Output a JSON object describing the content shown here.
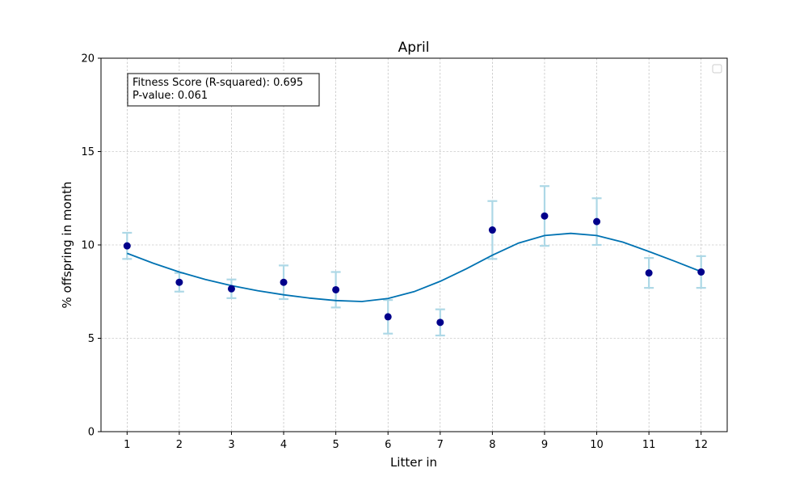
{
  "chart_data": {
    "type": "scatter",
    "title": "April",
    "xlabel": "Litter in",
    "ylabel": "% offspring in month",
    "xlim": [
      0.5,
      12.5
    ],
    "ylim": [
      0,
      20
    ],
    "xticks": [
      1,
      2,
      3,
      4,
      5,
      6,
      7,
      8,
      9,
      10,
      11,
      12
    ],
    "yticks": [
      0,
      5,
      10,
      15,
      20
    ],
    "grid": true,
    "legend": "top-right (empty)",
    "annotation": [
      "Fitness Score (R-squared): 0.695",
      "P-value: 0.061"
    ],
    "points": {
      "x": [
        1,
        2,
        3,
        4,
        5,
        6,
        7,
        8,
        9,
        10,
        11,
        12
      ],
      "y": [
        9.95,
        8.0,
        7.65,
        8.0,
        7.6,
        6.15,
        5.85,
        10.8,
        11.55,
        11.25,
        8.5,
        8.55
      ],
      "err": [
        0.7,
        0.5,
        0.5,
        0.9,
        0.95,
        0.9,
        0.7,
        1.55,
        1.6,
        1.25,
        0.8,
        0.85
      ]
    },
    "fit_curve": {
      "x": [
        1,
        1.5,
        2,
        2.5,
        3,
        3.5,
        4,
        4.5,
        5,
        5.5,
        6,
        6.5,
        7,
        7.5,
        8,
        8.5,
        9,
        9.5,
        10,
        10.5,
        11,
        11.5,
        12
      ],
      "y": [
        9.55,
        9.02,
        8.55,
        8.15,
        7.82,
        7.55,
        7.33,
        7.15,
        7.02,
        6.97,
        7.13,
        7.5,
        8.05,
        8.72,
        9.45,
        10.1,
        10.5,
        10.62,
        10.5,
        10.15,
        9.65,
        9.12,
        8.57
      ]
    },
    "colors": {
      "points": "#00008b",
      "errorbars": "#add8e6",
      "fit_line": "#0072b2",
      "grid": "#b0b0b0"
    }
  }
}
